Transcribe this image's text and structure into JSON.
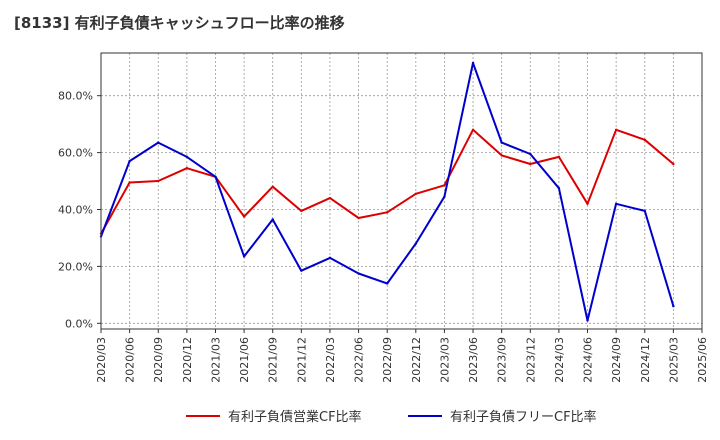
{
  "chart_data": {
    "type": "line",
    "title": "[8133]  有利子負債キャッシュフロー比率の推移",
    "xlabel": "",
    "ylabel": "",
    "categories": [
      "2020/03",
      "2020/06",
      "2020/09",
      "2020/12",
      "2021/03",
      "2021/06",
      "2021/09",
      "2021/12",
      "2022/03",
      "2022/06",
      "2022/09",
      "2022/12",
      "2023/03",
      "2023/06",
      "2023/09",
      "2023/12",
      "2024/03",
      "2024/06",
      "2024/09",
      "2024/12",
      "2025/03",
      "2025/06"
    ],
    "ylim": [
      -2,
      95
    ],
    "yticks": [
      0,
      20,
      40,
      60,
      80
    ],
    "ytick_labels": [
      "0.0%",
      "20.0%",
      "40.0%",
      "60.0%",
      "80.0%"
    ],
    "grid": true,
    "legend_position": "bottom",
    "series": [
      {
        "name": "有利子負債営業CF比率",
        "color": "#dd0000",
        "values": [
          31.5,
          49.5,
          50,
          54.5,
          51.5,
          37.5,
          48,
          39.5,
          44,
          37,
          39,
          45.5,
          48.5,
          68,
          59,
          56,
          58.5,
          42,
          68,
          64.5,
          56,
          null
        ]
      },
      {
        "name": "有利子負債フリーCF比率",
        "color": "#0000cc",
        "values": [
          30.5,
          57,
          63.5,
          58.5,
          51.5,
          23.5,
          36.5,
          18.5,
          23,
          17.5,
          14,
          28,
          44.5,
          91.5,
          63.5,
          59.5,
          47.5,
          1,
          42,
          39.5,
          6,
          null
        ]
      }
    ]
  }
}
